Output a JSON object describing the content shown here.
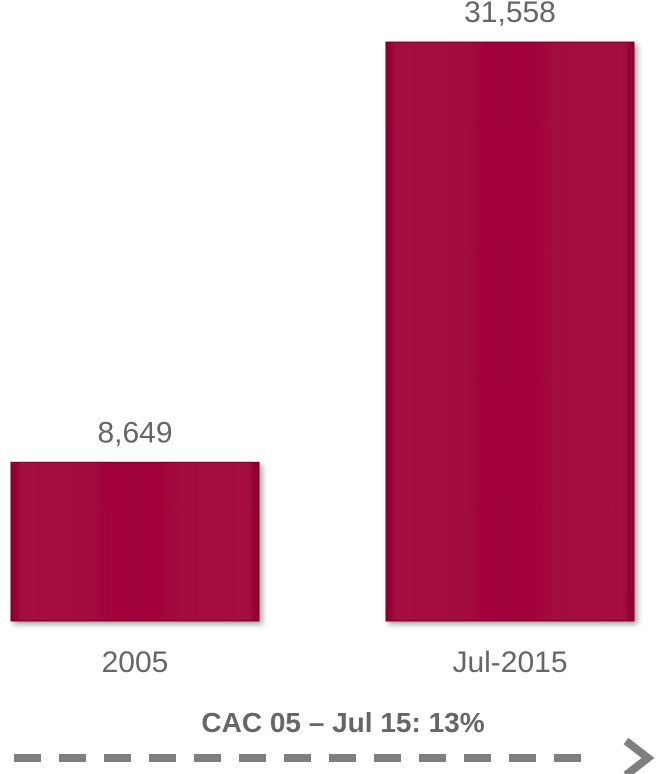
{
  "chart_data": {
    "type": "bar",
    "categories": [
      "2005",
      "Jul-2015"
    ],
    "values": [
      8649,
      31558
    ],
    "value_labels": [
      "8,649",
      "31,558"
    ],
    "title": "",
    "xlabel": "",
    "ylabel": "",
    "ylim": [
      0,
      32000
    ],
    "grid": false,
    "legend": "none",
    "annotation": "CAC 05 – Jul 15: 13%",
    "colors": {
      "bar": "#a0053a",
      "bar_border": "#7a0029",
      "text": "#666666",
      "arrow": "#7f7f7f"
    }
  }
}
